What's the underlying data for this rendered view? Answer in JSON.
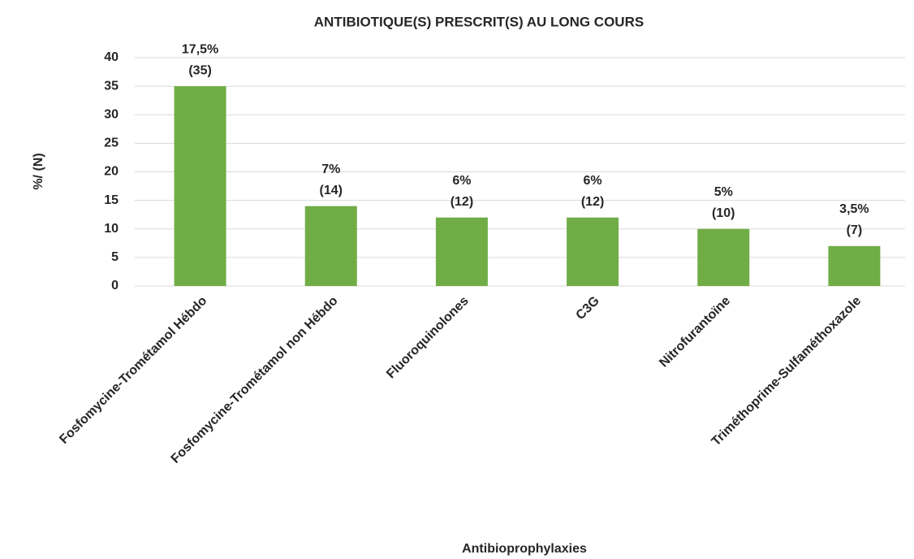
{
  "chart_data": {
    "type": "bar",
    "title": "ANTIBIOTIQUE(S) PRESCRIT(S) AU LONG COURS",
    "x_label": "Antibioprophylaxies",
    "y_label": "%/ (N)",
    "categories": [
      "Fosfomycine-Trométamol Hébdo",
      "Fosfomycine-Trométamol non Hébdo",
      "Fluoroquinolones",
      "C3G",
      "Nitrofurantoïne",
      "Triméthoprime-Sulfaméthoxazole"
    ],
    "values": [
      35,
      14,
      12,
      12,
      10,
      7
    ],
    "value_labels": [
      "(35)",
      "(14)",
      "(12)",
      "(12)",
      "(10)",
      "(7)"
    ],
    "percent_values": [
      17.5,
      7,
      6,
      6,
      5,
      3.5
    ],
    "percent_labels": [
      "17,5%",
      "7%",
      "6%",
      "6%",
      "5%",
      "3,5%"
    ],
    "color": "#70ad47",
    "ylim": [
      0,
      40
    ],
    "yticks": [
      0,
      5,
      10,
      15,
      20,
      25,
      30,
      35,
      40
    ],
    "grid": true
  }
}
